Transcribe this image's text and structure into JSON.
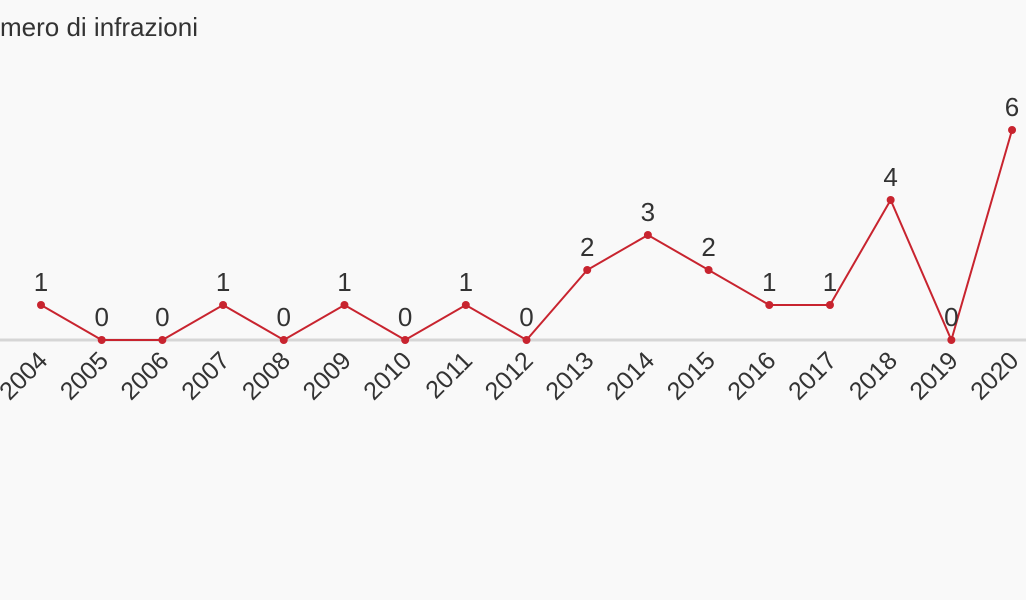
{
  "chart_data": {
    "type": "line",
    "title": "mero di infrazioni",
    "categories": [
      "2004",
      "2005",
      "2006",
      "2007",
      "2008",
      "2009",
      "2010",
      "2011",
      "2012",
      "2013",
      "2014",
      "2015",
      "2016",
      "2017",
      "2018",
      "2019",
      "2020"
    ],
    "values": [
      1,
      0,
      0,
      1,
      0,
      1,
      0,
      1,
      0,
      2,
      3,
      2,
      1,
      1,
      4,
      0,
      6
    ],
    "color": "#c8242f"
  }
}
